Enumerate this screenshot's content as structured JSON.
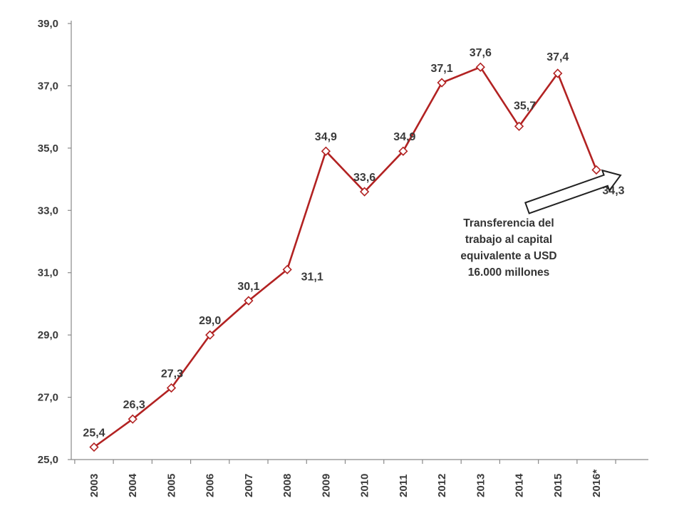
{
  "chart_data": {
    "type": "line",
    "categories": [
      "2003",
      "2004",
      "2005",
      "2006",
      "2007",
      "2008",
      "2009",
      "2010",
      "2011",
      "2012",
      "2013",
      "2014",
      "2015",
      "2016*"
    ],
    "values": [
      25.4,
      26.3,
      27.3,
      29.0,
      30.1,
      31.1,
      34.9,
      33.6,
      34.9,
      37.1,
      37.6,
      35.7,
      37.4,
      34.3
    ],
    "data_labels": [
      "25,4",
      "26,3",
      "27,3",
      "29,0",
      "30,1",
      "31,1",
      "34,9",
      "33,6",
      "34,9",
      "37,1",
      "37,6",
      "35,7",
      "37,4",
      "34,3"
    ],
    "yticks": [
      25,
      27,
      29,
      31,
      33,
      35,
      37,
      39
    ],
    "ytick_labels": [
      "25,0",
      "27,0",
      "29,0",
      "31,0",
      "33,0",
      "35,0",
      "37,0",
      "39,0"
    ],
    "ylim": [
      25,
      39
    ],
    "grid": false,
    "legend": "none",
    "line_color": "#b22222",
    "marker": "diamond-open",
    "annotation": {
      "lines": [
        "Transferencia del",
        "trabajo al capital",
        "equivalente a USD",
        "16.000 millones"
      ],
      "arrow_target": "2016*"
    }
  }
}
